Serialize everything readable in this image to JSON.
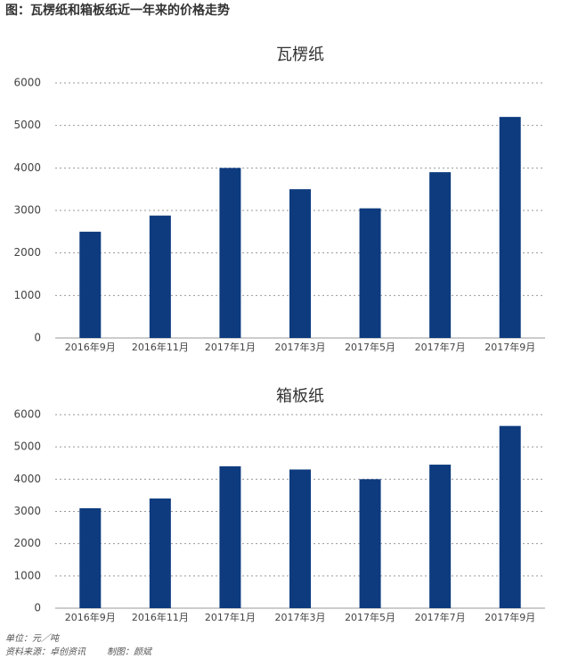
{
  "header": {
    "title": "图：瓦楞纸和箱板纸近一年来的价格走势"
  },
  "chart_data": [
    {
      "type": "bar",
      "title": "瓦楞纸",
      "categories": [
        "2016年9月",
        "2016年11月",
        "2017年1月",
        "2017年3月",
        "2017年5月",
        "2017年7月",
        "2017年9月"
      ],
      "values": [
        2500,
        2880,
        4000,
        3500,
        3050,
        3900,
        5200
      ],
      "color": "#0d3b7e",
      "ylim": [
        0,
        6000
      ],
      "yticks": [
        0,
        1000,
        2000,
        3000,
        4000,
        5000,
        6000
      ],
      "grid": true
    },
    {
      "type": "bar",
      "title": "箱板纸",
      "categories": [
        "2016年9月",
        "2016年11月",
        "2017年1月",
        "2017年3月",
        "2017年5月",
        "2017年7月",
        "2017年9月"
      ],
      "values": [
        3100,
        3400,
        4400,
        4300,
        4000,
        4450,
        5650
      ],
      "color": "#0d3b7e",
      "ylim": [
        0,
        6000
      ],
      "yticks": [
        0,
        1000,
        2000,
        3000,
        4000,
        5000,
        6000
      ],
      "grid": true
    }
  ],
  "footer": {
    "unit": "单位：元／吨",
    "source": "资料来源：卓创资讯",
    "author": "制图：颜斌"
  }
}
